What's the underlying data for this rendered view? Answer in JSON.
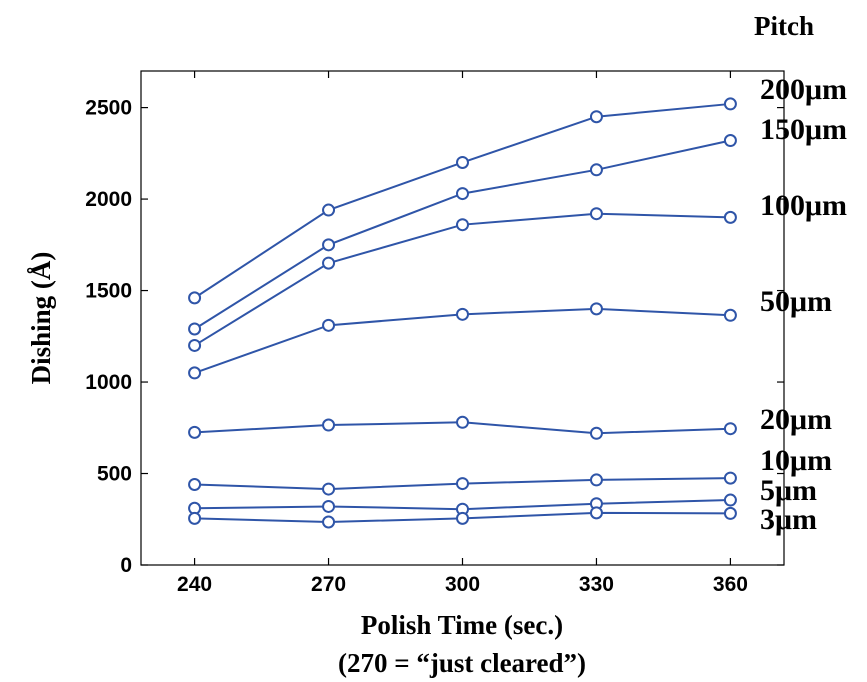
{
  "chart_data": {
    "type": "line",
    "xlabel": "Polish Time (sec.)",
    "xlabel_note": "(270 = “just cleared”)",
    "ylabel": "Dishing (Å)",
    "legend_title": "Pitch",
    "x": [
      240,
      270,
      300,
      330,
      360
    ],
    "xlim": [
      228,
      372
    ],
    "ylim": [
      0,
      2700
    ],
    "xticks": [
      240,
      270,
      300,
      330,
      360
    ],
    "yticks": [
      0,
      500,
      1000,
      1500,
      2000,
      2500
    ],
    "grid": false,
    "legend_placement": "right, labels at line ends",
    "series": [
      {
        "name": "200μm",
        "values": [
          1460,
          1940,
          2200,
          2450,
          2520
        ]
      },
      {
        "name": "150μm",
        "values": [
          1290,
          1750,
          2030,
          2160,
          2320
        ]
      },
      {
        "name": "100μm",
        "values": [
          1200,
          1650,
          1860,
          1920,
          1900
        ]
      },
      {
        "name": "50μm",
        "values": [
          1050,
          1310,
          1370,
          1400,
          1365
        ]
      },
      {
        "name": "20μm",
        "values": [
          725,
          765,
          780,
          720,
          745
        ]
      },
      {
        "name": "10μm",
        "values": [
          440,
          415,
          445,
          465,
          475
        ]
      },
      {
        "name": "5μm",
        "values": [
          310,
          320,
          305,
          335,
          355
        ]
      },
      {
        "name": "3μm",
        "values": [
          255,
          235,
          255,
          285,
          282
        ]
      }
    ],
    "colors": {
      "line": "#2f55a8",
      "axis": "#000000"
    }
  }
}
